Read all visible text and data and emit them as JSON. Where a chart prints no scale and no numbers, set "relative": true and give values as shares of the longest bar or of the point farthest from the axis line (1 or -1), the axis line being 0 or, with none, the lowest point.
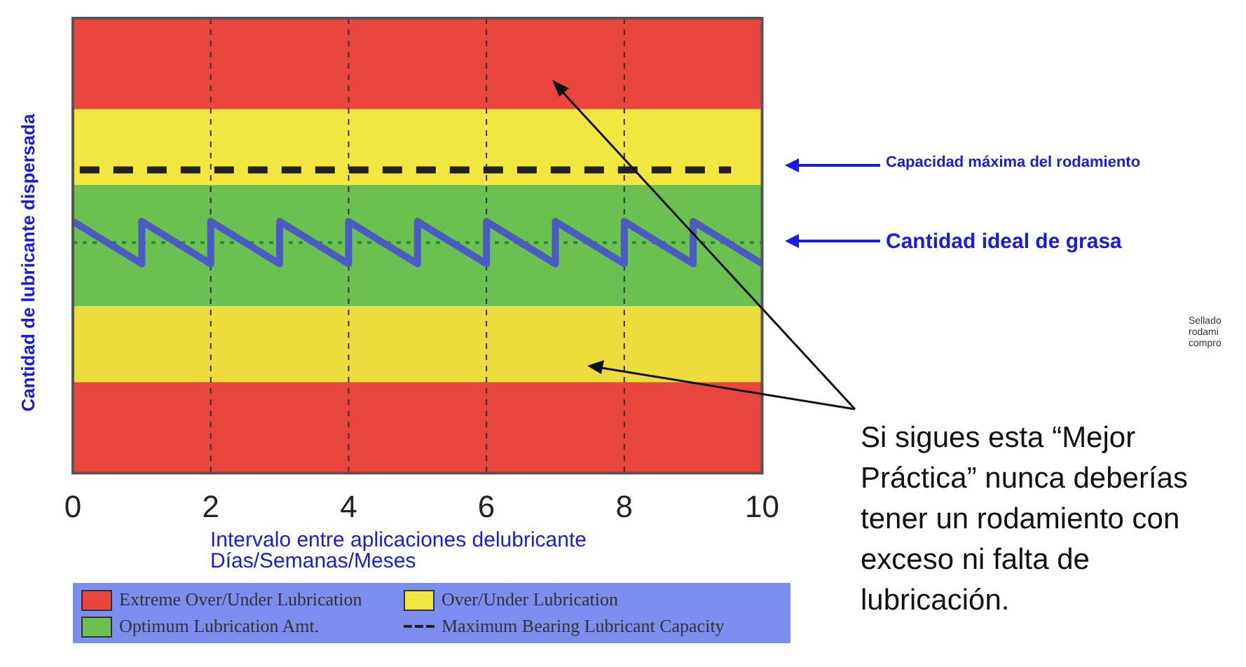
{
  "chart_data": {
    "type": "line",
    "relative": true,
    "ylabel": "Cantidad de lubricante dispersada",
    "xlabel": "Intervalo entre aplicaciones delubricante Días/Semanas/Meses",
    "xlim": [
      0,
      10
    ],
    "xticks": [
      0,
      2,
      4,
      6,
      8,
      10
    ],
    "grid": "x",
    "legend": "bottom",
    "marker": "none",
    "series": [
      {
        "color": "#4a5cc4",
        "x": [
          0,
          1,
          1,
          2,
          2,
          3,
          3,
          4,
          4,
          5,
          5,
          6,
          6,
          7,
          7,
          8,
          8,
          9,
          9,
          10
        ],
        "values": [
          0.83,
          0.69,
          0.83,
          0.69,
          0.83,
          0.69,
          0.83,
          0.69,
          0.83,
          0.69,
          0.83,
          0.69,
          0.83,
          0.69,
          0.83,
          0.69,
          0.83,
          0.69,
          0.83,
          0.69
        ]
      },
      {
        "name": "Maximum Bearing Lubricant Capacity",
        "color": "#222222",
        "line_style": "dashed",
        "x": [
          0.1,
          9.55
        ],
        "values": [
          1,
          1
        ]
      },
      {
        "color": "#2a8a3a",
        "line_style": "dotted",
        "x": [
          0,
          10
        ],
        "values": [
          0.76,
          0.76
        ]
      }
    ],
    "bands": [
      {
        "axis": "y",
        "from": 0,
        "to": 0.3,
        "color": "#e8463e",
        "label": "Extreme Over/Under Lubrication"
      },
      {
        "axis": "y",
        "from": 0.95,
        "to": 1.2,
        "color": "#f2e640",
        "label": "Over/Under Lubrication"
      },
      {
        "axis": "y",
        "from": 0.55,
        "to": 0.95,
        "color": "#6cc050",
        "label": "Optimum Lubrication Amt."
      },
      {
        "axis": "y",
        "from": 0.3,
        "to": 0.55,
        "color": "#eedc3c"
      },
      {
        "axis": "y",
        "from": 1.2,
        "to": 1.5,
        "color": "#e8463e"
      }
    ],
    "annotations": [
      "Capacidad máxima del rodamiento",
      "Cantidad ideal de grasa",
      "Si sigues esta “Mejor Práctica” nunca deberías tener un rodamiento con exceso ni falta de lubricación.",
      "Sellado rodami compro"
    ]
  }
}
